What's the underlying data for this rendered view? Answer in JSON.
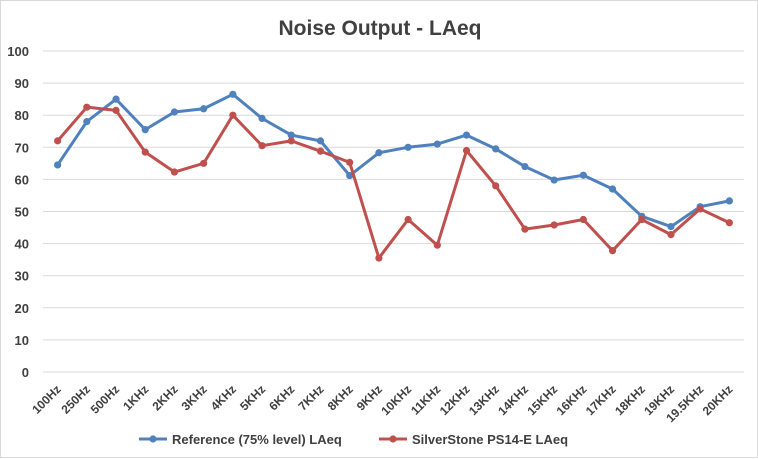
{
  "chart_data": {
    "type": "line",
    "title": "Noise Output - LAeq",
    "xlabel": "",
    "ylabel": "",
    "ylim": [
      0,
      100
    ],
    "yticks": [
      "0",
      "10",
      "20",
      "30",
      "40",
      "50",
      "60",
      "70",
      "80",
      "90",
      "100"
    ],
    "grid": "horizontal",
    "legend_position": "bottom",
    "categories": [
      "100Hz",
      "250Hz",
      "500Hz",
      "1KHz",
      "2KHz",
      "3KHz",
      "4KHz",
      "5KHz",
      "6KHz",
      "7KHz",
      "8KHz",
      "9KHz",
      "10KHz",
      "11KHz",
      "12KHz",
      "13KHz",
      "14KHz",
      "15KHz",
      "16KHz",
      "17KHz",
      "18KHz",
      "19KHz",
      "19.5KHz",
      "20KHz"
    ],
    "series": [
      {
        "name": "Reference (75% level) LAeq",
        "color": "#4f81bd",
        "values": [
          64.5,
          78,
          85,
          75.5,
          81,
          82,
          86.5,
          79,
          73.8,
          72,
          61.2,
          68.3,
          70,
          71,
          73.8,
          69.5,
          64,
          59.8,
          61.3,
          57,
          48.5,
          45.3,
          51.5,
          53.3
        ]
      },
      {
        "name": "SilverStone PS14-E LAeq",
        "color": "#c0504d",
        "values": [
          72,
          82.5,
          81.5,
          68.5,
          62.3,
          65,
          80,
          70.5,
          72,
          68.8,
          65.3,
          35.5,
          47.5,
          39.5,
          69,
          58,
          44.5,
          45.8,
          47.5,
          37.8,
          47.5,
          42.8,
          50.8,
          46.5
        ]
      }
    ]
  }
}
